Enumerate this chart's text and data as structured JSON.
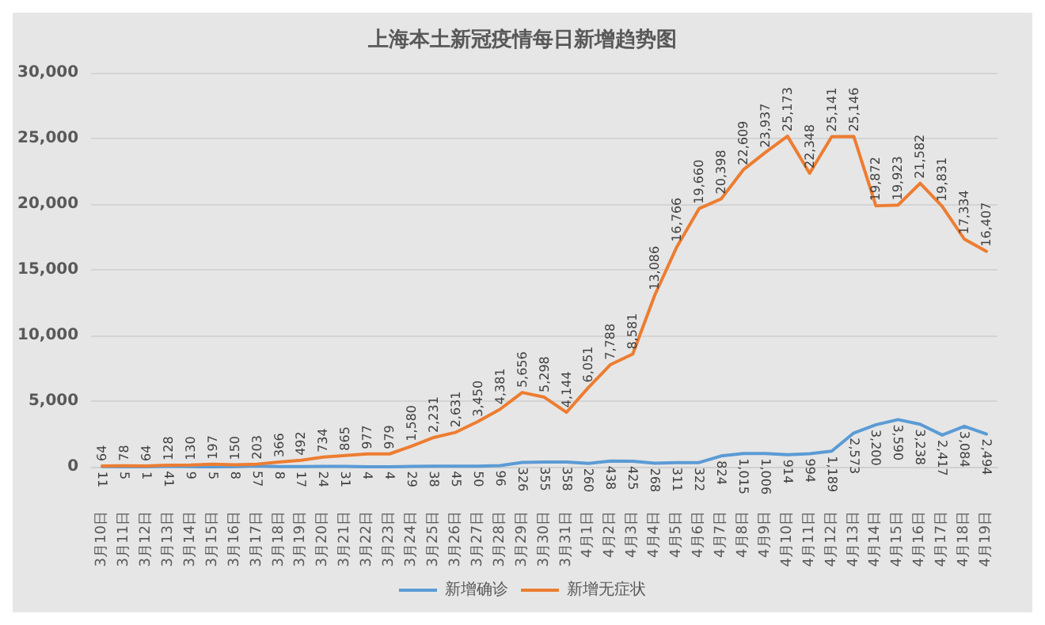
{
  "chart_data": {
    "type": "line",
    "title": "上海本土新冠疫情每日新增趋势图",
    "categories": [
      "3月10日",
      "3月11日",
      "3月12日",
      "3月13日",
      "3月14日",
      "3月15日",
      "3月16日",
      "3月17日",
      "3月18日",
      "3月19日",
      "3月20日",
      "3月21日",
      "3月22日",
      "3月23日",
      "3月24日",
      "3月25日",
      "3月26日",
      "3月27日",
      "3月28日",
      "3月29日",
      "3月30日",
      "3月31日",
      "4月1日",
      "4月2日",
      "4月3日",
      "4月4日",
      "4月5日",
      "4月6日",
      "4月7日",
      "4月8日",
      "4月9日",
      "4月10日",
      "4月11日",
      "4月12日",
      "4月13日",
      "4月14日",
      "4月15日",
      "4月16日",
      "4月17日",
      "4月18日",
      "4月19日"
    ],
    "series": [
      {
        "name": "新增确诊",
        "color": "#5b9bd5",
        "values": [
          11,
          5,
          1,
          41,
          9,
          5,
          8,
          57,
          8,
          17,
          24,
          31,
          4,
          4,
          29,
          38,
          45,
          50,
          96,
          326,
          355,
          358,
          260,
          438,
          425,
          268,
          311,
          322,
          824,
          1015,
          1006,
          914,
          994,
          1189,
          2573,
          3200,
          3590,
          3238,
          2417,
          3084,
          2494
        ],
        "value_labels": [
          "11",
          "5",
          "1",
          "41",
          "9",
          "5",
          "8",
          "57",
          "8",
          "17",
          "24",
          "31",
          "4",
          "4",
          "29",
          "38",
          "45",
          "50",
          "96",
          "326",
          "355",
          "358",
          "260",
          "438",
          "425",
          "268",
          "311",
          "322",
          "824",
          "1,015",
          "1,006",
          "914",
          "994",
          "1,189",
          "2,573",
          "3,200",
          "3,590",
          "3,238",
          "2,417",
          "3,084",
          "2,494"
        ]
      },
      {
        "name": "新增无症状",
        "color": "#ed7d31",
        "values": [
          64,
          78,
          64,
          128,
          130,
          197,
          150,
          203,
          366,
          492,
          734,
          865,
          977,
          979,
          1580,
          2231,
          2631,
          3450,
          4381,
          5656,
          5298,
          4144,
          6051,
          7788,
          8581,
          13086,
          16766,
          19660,
          20398,
          22609,
          23937,
          25173,
          22348,
          25141,
          25146,
          19872,
          19923,
          21582,
          19831,
          17334,
          16407
        ],
        "value_labels": [
          "64",
          "78",
          "64",
          "128",
          "130",
          "197",
          "150",
          "203",
          "366",
          "492",
          "734",
          "865",
          "977",
          "979",
          "1,580",
          "2,231",
          "2,631",
          "3,450",
          "4,381",
          "5,656",
          "5,298",
          "4,144",
          "6,051",
          "7,788",
          "8,581",
          "13,086",
          "16,766",
          "19,660",
          "20,398",
          "22,609",
          "23,937",
          "25,173",
          "22,348",
          "25,141",
          "25,146",
          "19,872",
          "19,923",
          "21,582",
          "19,831",
          "17,334",
          "16,407"
        ]
      }
    ],
    "ylim": [
      0,
      30000
    ],
    "yticks": [
      {
        "value": 0,
        "label": "0"
      },
      {
        "value": 5000,
        "label": "5,000"
      },
      {
        "value": 10000,
        "label": "10,000"
      },
      {
        "value": 15000,
        "label": "15,000"
      },
      {
        "value": 20000,
        "label": "20,000"
      },
      {
        "value": 25000,
        "label": "25,000"
      },
      {
        "value": 30000,
        "label": "30,000"
      }
    ],
    "grid": "y",
    "legend": "bottom",
    "marker": "none",
    "line_style": "solid"
  }
}
